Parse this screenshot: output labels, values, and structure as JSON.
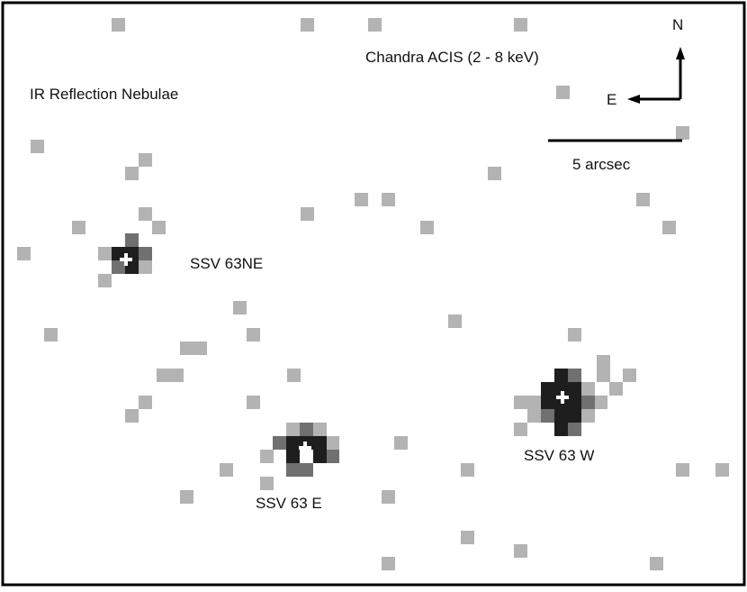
{
  "image": {
    "title": "Chandra ACIS (2 - 8 keV)",
    "subtitle": "IR Reflection Nebulae",
    "compass": {
      "north": "N",
      "east": "E"
    },
    "scale_bar_label": "5 arcsec",
    "sources": [
      {
        "name": "SSV 63NE"
      },
      {
        "name": "SSV 63 E"
      },
      {
        "name": "SSV 63 W"
      }
    ],
    "pixel_colors": {
      "light": "#b3b3b3",
      "mid": "#707070",
      "dark": "#1e1e1e"
    }
  }
}
